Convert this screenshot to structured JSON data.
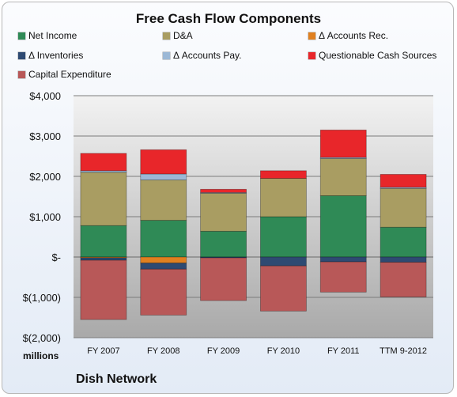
{
  "chart_data": {
    "type": "bar",
    "stacked": true,
    "title": "Free Cash Flow Components",
    "units_label": "millions",
    "company": "Dish Network",
    "categories": [
      "FY 2007",
      "FY 2008",
      "FY 2009",
      "FY 2010",
      "FY 2011",
      "TTM 9-2012"
    ],
    "yticks": [
      "$4,000",
      "$3,000",
      "$2,000",
      "$1,000",
      "$-",
      "$(1,000)",
      "$(2,000)"
    ],
    "ylim": [
      -2000,
      4000
    ],
    "grid": true,
    "legend_position": "top",
    "series": [
      {
        "name": "Net Income",
        "color": "#2f8a56",
        "values": [
          780,
          910,
          640,
          1000,
          1520,
          740
        ]
      },
      {
        "name": "D&A",
        "color": "#a99d62",
        "values": [
          1320,
          1000,
          940,
          950,
          920,
          960
        ]
      },
      {
        "name": "Δ Accounts Rec.",
        "color": "#e08020",
        "values": [
          -20,
          -150,
          0,
          0,
          0,
          0
        ]
      },
      {
        "name": "Δ Inventories",
        "color": "#2e4a72",
        "values": [
          -60,
          -150,
          -20,
          -220,
          -120,
          -130
        ]
      },
      {
        "name": "Δ Accounts Pay.",
        "color": "#9cb8d6",
        "values": [
          40,
          150,
          20,
          0,
          30,
          30
        ]
      },
      {
        "name": "Questionable Cash Sources",
        "color": "#e8262a",
        "values": [
          430,
          600,
          80,
          190,
          680,
          320
        ]
      },
      {
        "name": "Capital Expenditure",
        "color": "#b85858",
        "values": [
          -1470,
          -1140,
          -1060,
          -1120,
          -750,
          -860
        ]
      }
    ]
  }
}
